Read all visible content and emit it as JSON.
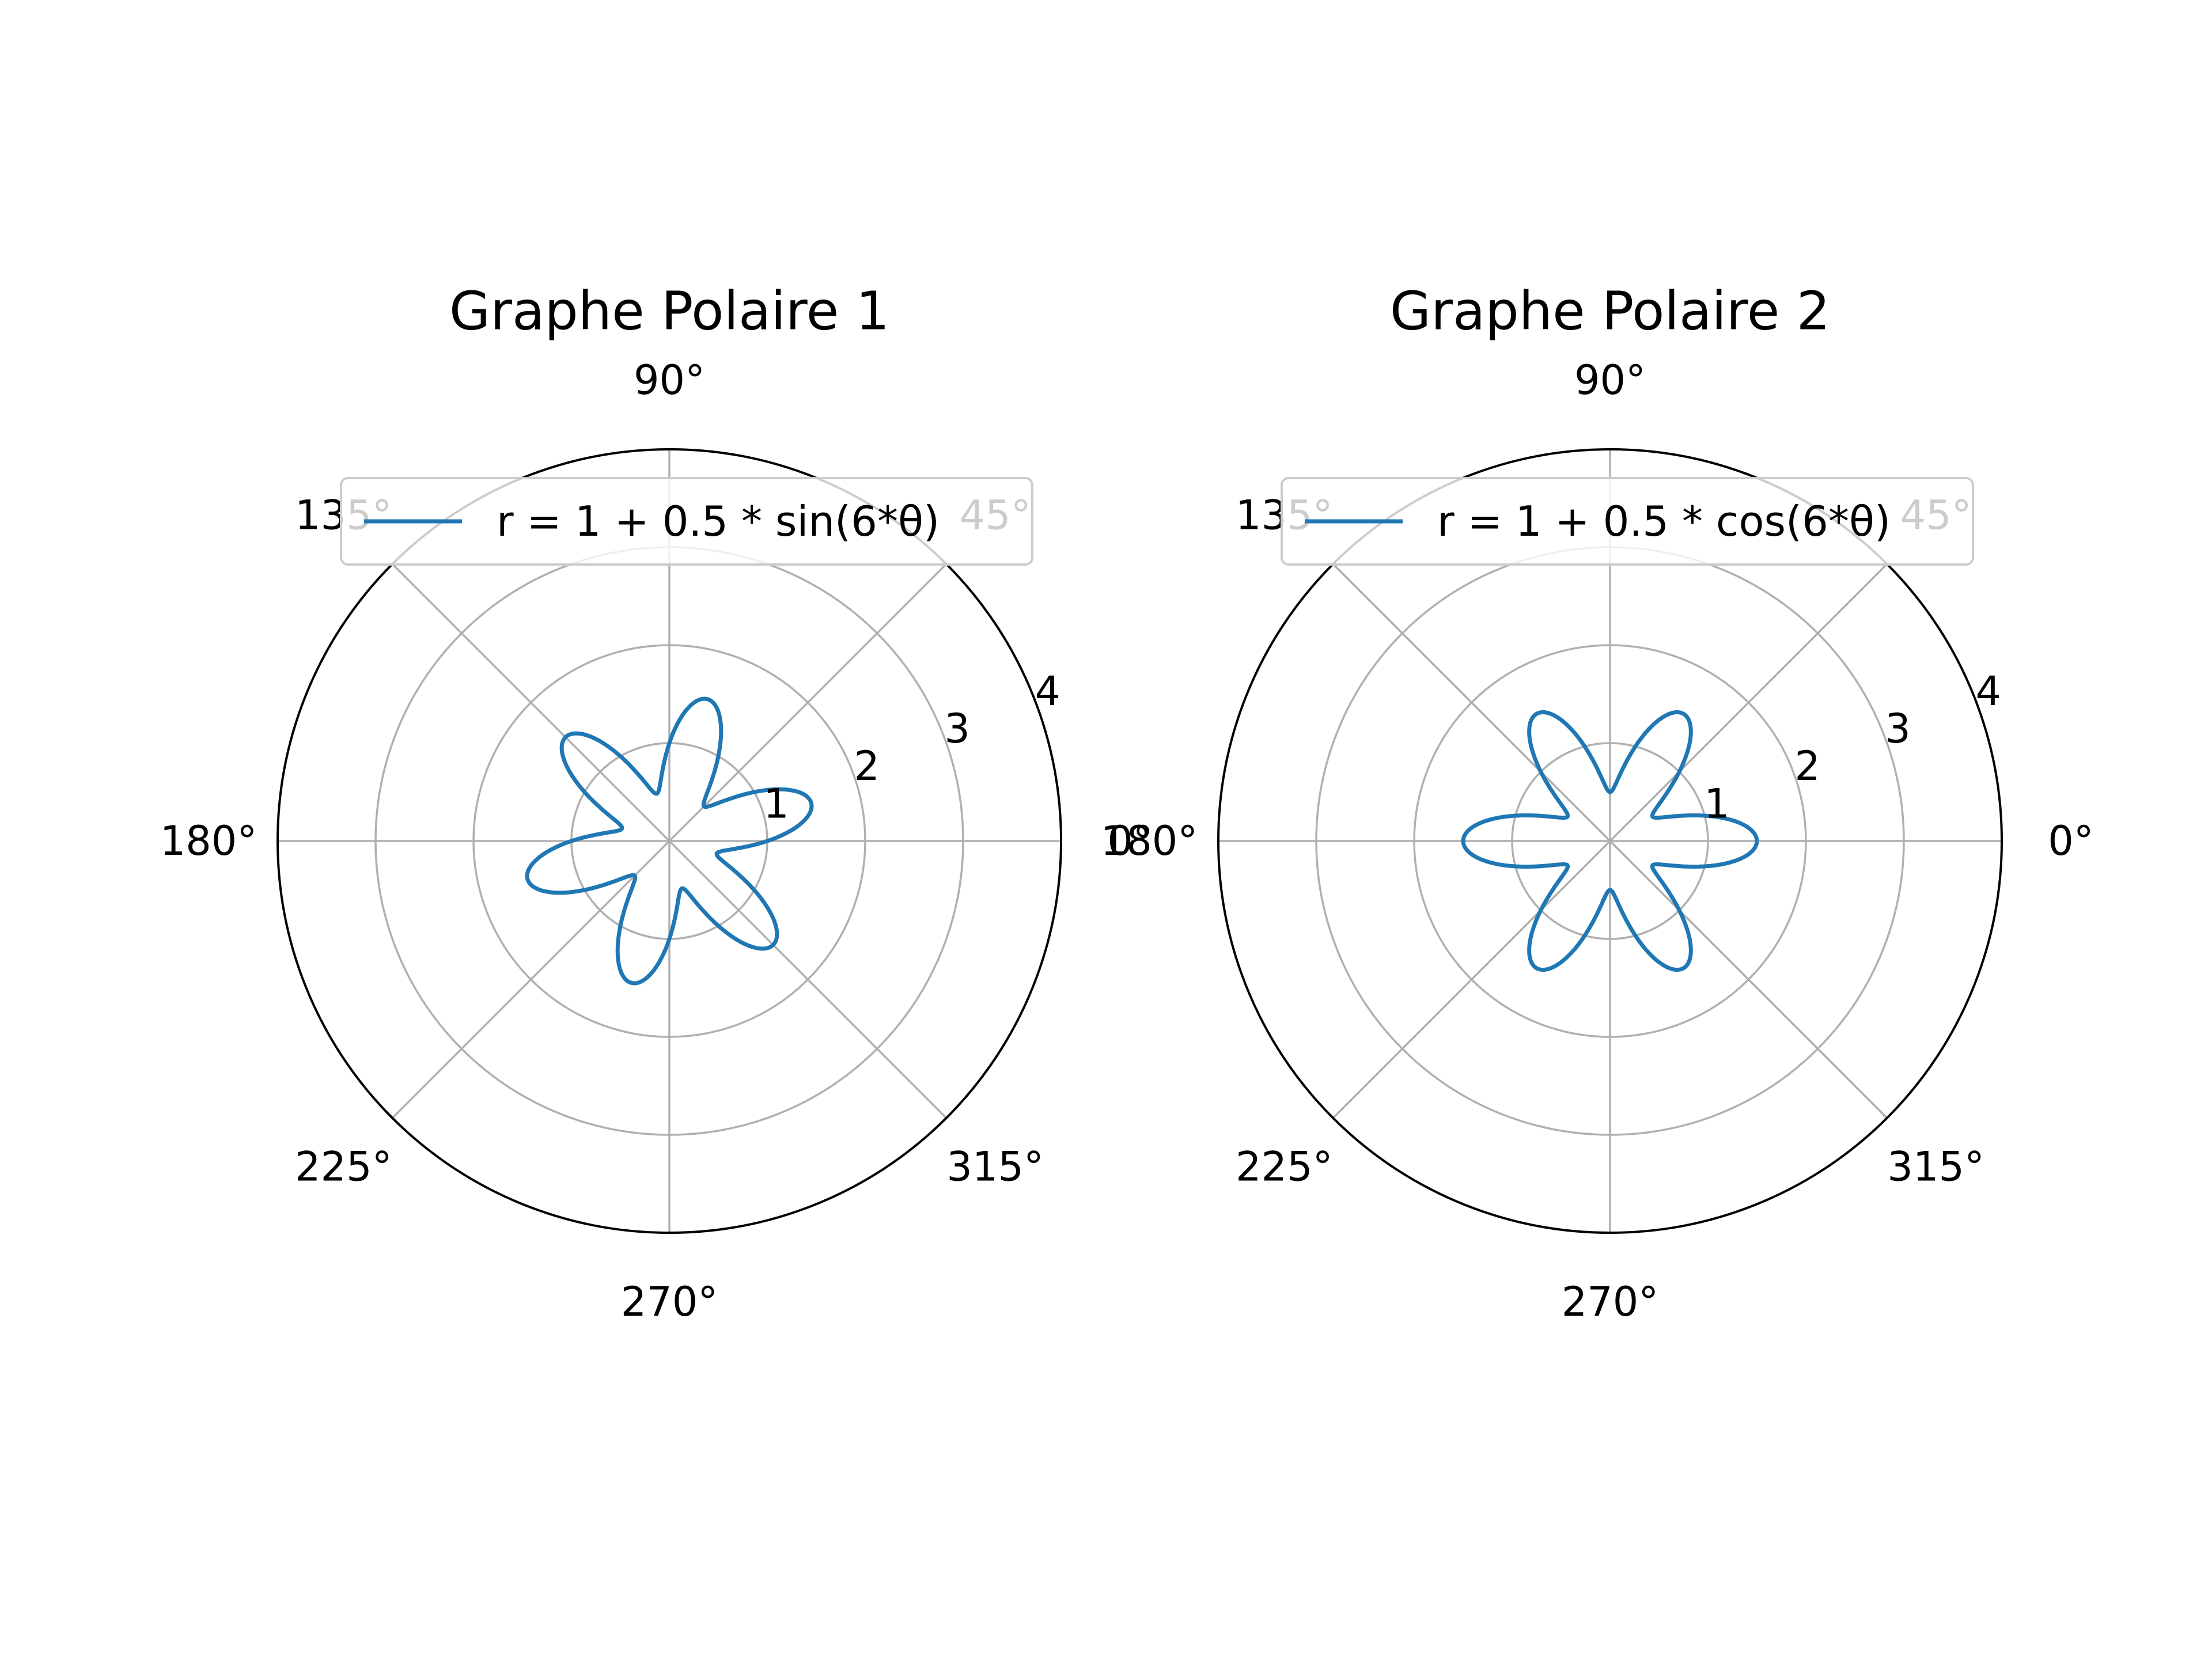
{
  "chart_data": [
    {
      "type": "polar-line",
      "title": "Graphe Polaire 1",
      "theta_tick_labels": [
        "0°",
        "45°",
        "90°",
        "135°",
        "180°",
        "225°",
        "270°",
        "315°"
      ],
      "theta_ticks_deg": [
        0,
        45,
        90,
        135,
        180,
        225,
        270,
        315
      ],
      "r_ticks": [
        1,
        2,
        3,
        4
      ],
      "r_tick_labels": [
        "1",
        "2",
        "3",
        "4"
      ],
      "r_max": 4,
      "grid": true,
      "legend_position": "top",
      "series": [
        {
          "name": "r = 1 + 0.5 * sin(6*θ)",
          "function": "sin",
          "base": 1,
          "amplitude": 0.5,
          "frequency": 6,
          "color": "#1f77b4"
        }
      ]
    },
    {
      "type": "polar-line",
      "title": "Graphe Polaire 2",
      "theta_tick_labels": [
        "0°",
        "45°",
        "90°",
        "135°",
        "180°",
        "225°",
        "270°",
        "315°"
      ],
      "theta_ticks_deg": [
        0,
        45,
        90,
        135,
        180,
        225,
        270,
        315
      ],
      "r_ticks": [
        1,
        2,
        3,
        4
      ],
      "r_tick_labels": [
        "1",
        "2",
        "3",
        "4"
      ],
      "r_max": 4,
      "grid": true,
      "legend_position": "top",
      "series": [
        {
          "name": "r = 1 + 0.5 * cos(6*θ)",
          "function": "cos",
          "base": 1,
          "amplitude": 0.5,
          "frequency": 6,
          "color": "#1f77b4"
        }
      ]
    }
  ],
  "colors": {
    "grid": "#b0b0b0",
    "frame": "#000000",
    "line": "#1f77b4",
    "legend_border": "#cccccc"
  }
}
